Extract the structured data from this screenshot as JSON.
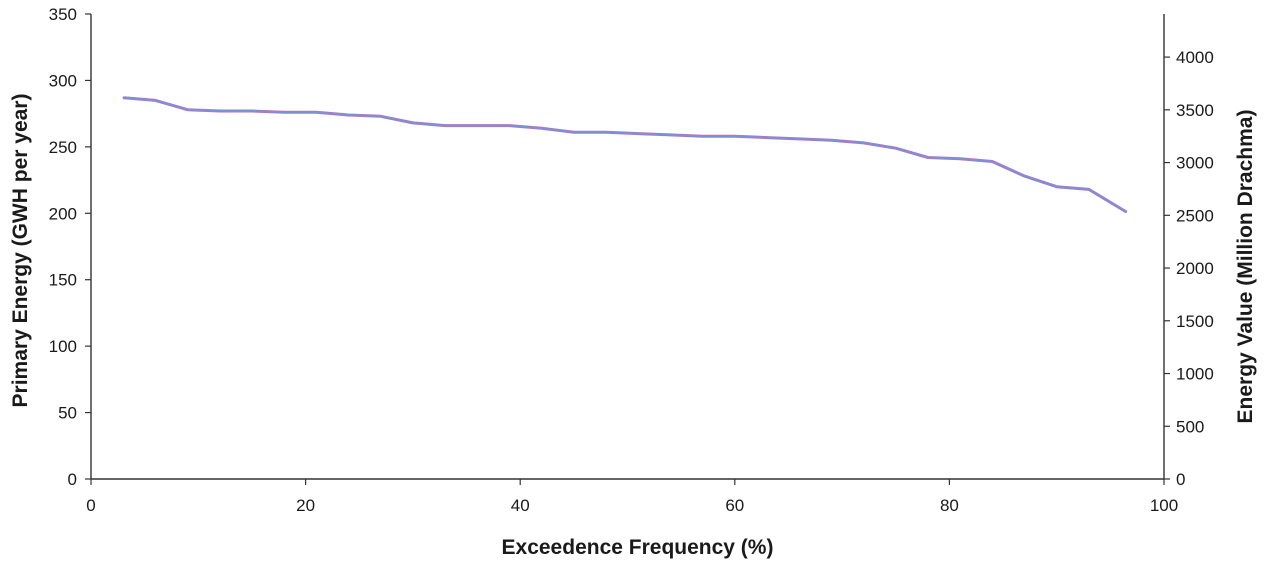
{
  "chart_data": {
    "type": "line",
    "title": "",
    "xlabel": "Exceedence Frequency (%)",
    "ylabel": "Primary Energy (GWH per year)",
    "y2label": "Energy Value (Million Drachma)",
    "xlim": [
      0,
      100
    ],
    "ylim": [
      0,
      350
    ],
    "y2lim": [
      0,
      4200
    ],
    "xticks": [
      0,
      20,
      40,
      60,
      80,
      100
    ],
    "yticks": [
      0,
      50,
      100,
      150,
      200,
      250,
      300,
      350
    ],
    "y2ticks": [
      0,
      500,
      1000,
      1500,
      2000,
      2500,
      3000,
      3500,
      4000
    ],
    "grid": false,
    "legend": false,
    "series": [
      {
        "color": "#7f8fd6",
        "overlay_color": "#c04f9a",
        "x": [
          3,
          6,
          9,
          12,
          15,
          18,
          21,
          24,
          27,
          30,
          33,
          36,
          39,
          42,
          45,
          48,
          51,
          54,
          57,
          60,
          63,
          66,
          69,
          72,
          75,
          78,
          81,
          84,
          87,
          90,
          93,
          96.5
        ],
        "y": [
          287,
          285,
          278,
          277,
          277,
          276,
          276,
          274,
          273,
          268,
          266,
          266,
          266,
          264,
          261,
          261,
          260,
          259,
          258,
          258,
          257,
          256,
          255,
          253,
          249,
          242,
          241,
          239,
          228,
          220,
          218,
          201
        ]
      }
    ]
  }
}
